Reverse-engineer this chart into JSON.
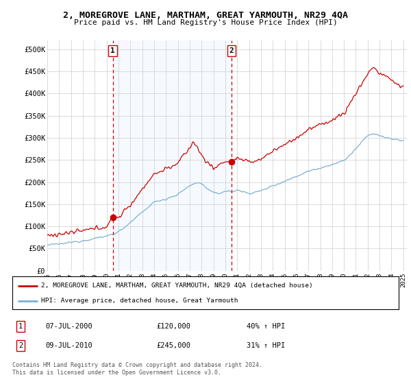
{
  "title": "2, MOREGROVE LANE, MARTHAM, GREAT YARMOUTH, NR29 4QA",
  "subtitle": "Price paid vs. HM Land Registry's House Price Index (HPI)",
  "ylim": [
    0,
    520000
  ],
  "yticks": [
    0,
    50000,
    100000,
    150000,
    200000,
    250000,
    300000,
    350000,
    400000,
    450000,
    500000
  ],
  "ytick_labels": [
    "£0",
    "£50K",
    "£100K",
    "£150K",
    "£200K",
    "£250K",
    "£300K",
    "£350K",
    "£400K",
    "£450K",
    "£500K"
  ],
  "background_color": "#ffffff",
  "grid_color": "#cccccc",
  "shade_color": "#ddeeff",
  "sale1_date": 2000.52,
  "sale1_price": 120000,
  "sale2_date": 2010.52,
  "sale2_price": 245000,
  "red_line_color": "#cc0000",
  "blue_line_color": "#7ab0d4",
  "legend_red_label": "2, MOREGROVE LANE, MARTHAM, GREAT YARMOUTH, NR29 4QA (detached house)",
  "legend_blue_label": "HPI: Average price, detached house, Great Yarmouth",
  "note1_label": "1",
  "note1_date": "07-JUL-2000",
  "note1_price": "£120,000",
  "note1_hpi": "40% ↑ HPI",
  "note2_label": "2",
  "note2_date": "09-JUL-2010",
  "note2_price": "£245,000",
  "note2_hpi": "31% ↑ HPI",
  "copyright": "Contains HM Land Registry data © Crown copyright and database right 2024.\nThis data is licensed under the Open Government Licence v3.0.",
  "xlim_start": 1995,
  "xlim_end": 2025.3
}
